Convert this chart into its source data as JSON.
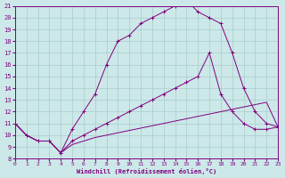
{
  "xlabel": "Windchill (Refroidissement éolien,°C)",
  "xlim": [
    0,
    23
  ],
  "ylim": [
    8,
    21
  ],
  "xticks": [
    0,
    1,
    2,
    3,
    4,
    5,
    6,
    7,
    8,
    9,
    10,
    11,
    12,
    13,
    14,
    15,
    16,
    17,
    18,
    19,
    20,
    21,
    22,
    23
  ],
  "yticks": [
    8,
    9,
    10,
    11,
    12,
    13,
    14,
    15,
    16,
    17,
    18,
    19,
    20,
    21
  ],
  "bg_color": "#cce8e8",
  "line_color": "#800080",
  "grid_color": "#aacccc",
  "series": [
    {
      "x": [
        0,
        1,
        2,
        3,
        4,
        5,
        6,
        7,
        8,
        9,
        10,
        11,
        12,
        13,
        14,
        15,
        16,
        17,
        18,
        19,
        20,
        21,
        22,
        23
      ],
      "y": [
        11,
        10,
        9.5,
        9.5,
        8.5,
        9.2,
        9.5,
        9.8,
        10.0,
        10.2,
        10.4,
        10.6,
        10.8,
        11.0,
        11.2,
        11.4,
        11.6,
        11.8,
        12.0,
        12.2,
        12.4,
        12.6,
        12.8,
        10.7
      ]
    },
    {
      "x": [
        0,
        1,
        2,
        3,
        4,
        5,
        6,
        7,
        8,
        9,
        10,
        11,
        12,
        13,
        14,
        15,
        16,
        17,
        18,
        19,
        20,
        21,
        22,
        23
      ],
      "y": [
        11,
        10,
        9.5,
        9.5,
        8.5,
        9.5,
        10.0,
        10.5,
        11.0,
        11.5,
        12.0,
        12.5,
        13.0,
        13.5,
        14.0,
        14.5,
        15.0,
        17.0,
        13.5,
        12.0,
        11.0,
        10.5,
        10.5,
        10.7
      ]
    },
    {
      "x": [
        0,
        1,
        2,
        3,
        4,
        5,
        6,
        7,
        8,
        9,
        10,
        11,
        12,
        13,
        14,
        15,
        16,
        17,
        18,
        19,
        20,
        21,
        22,
        23
      ],
      "y": [
        11,
        10,
        9.5,
        9.5,
        8.5,
        10.5,
        12.0,
        13.5,
        16.0,
        18.0,
        18.5,
        19.5,
        20.0,
        20.5,
        21.0,
        21.5,
        20.5,
        20.0,
        19.5,
        17.0,
        14.0,
        12.0,
        11.0,
        10.7
      ]
    }
  ]
}
